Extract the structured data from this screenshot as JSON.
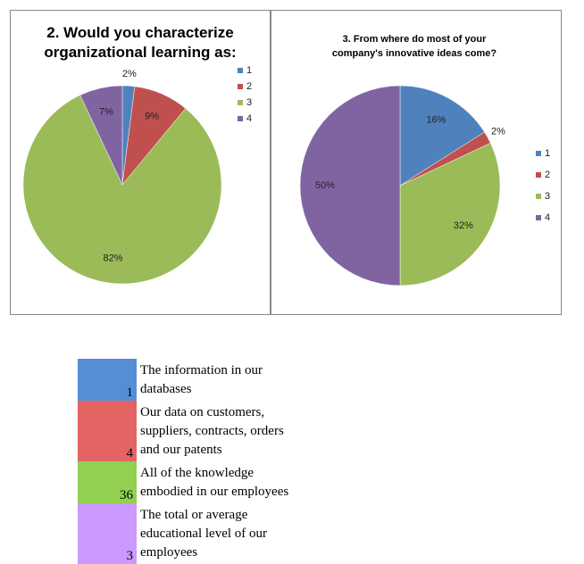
{
  "chart_data": [
    {
      "type": "pie",
      "title": "2. Would you characterize organizational learning as:",
      "categories": [
        "1",
        "2",
        "3",
        "4"
      ],
      "values": [
        2,
        9,
        82,
        7
      ],
      "value_labels": [
        "2%",
        "9%",
        "82%",
        "7%"
      ],
      "colors": [
        "#4f81bd",
        "#c0504d",
        "#9bbb59",
        "#8064a2"
      ],
      "legend": "top-right"
    },
    {
      "type": "pie",
      "title": "3.      From where do most of your company's innovative ideas come?",
      "categories": [
        "1",
        "2",
        "3",
        "4"
      ],
      "values": [
        16,
        2,
        32,
        50
      ],
      "value_labels": [
        "16%",
        "2%",
        "32%",
        "50%"
      ],
      "colors": [
        "#4f81bd",
        "#c0504d",
        "#9bbb59",
        "#8064a2"
      ],
      "legend": "right"
    }
  ],
  "table": {
    "rows": [
      {
        "count": 1,
        "text": "The information in our databases",
        "color": "#558ed5"
      },
      {
        "count": 4,
        "text": "Our data on customers, suppliers, contracts, orders and our patents",
        "color": "#e46464"
      },
      {
        "count": 36,
        "text": "All of the knowledge embodied in our employees",
        "color": "#92d050"
      },
      {
        "count": 3,
        "text": "The total or average educational level of our employees",
        "color": "#cc99ff"
      }
    ]
  }
}
